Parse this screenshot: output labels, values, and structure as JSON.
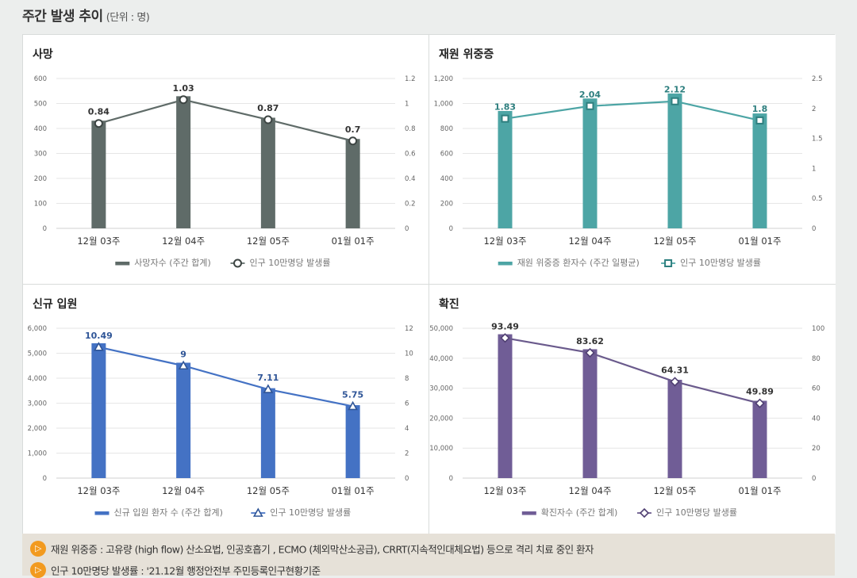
{
  "header": {
    "title": "주간 발생 추이",
    "unit": "(단위 : 명)"
  },
  "chart_data": [
    {
      "type": "bar",
      "title": "사망",
      "categories": [
        "12월 03주",
        "12월 04주",
        "12월 05주",
        "01월 01주"
      ],
      "series": [
        {
          "name": "사망자수 (주간 합계)",
          "kind": "bar",
          "axis": "left",
          "values": [
            431,
            529,
            443,
            358
          ]
        },
        {
          "name": "인구 10만명당 발생률",
          "kind": "line",
          "axis": "right",
          "values": [
            0.84,
            1.03,
            0.87,
            0.7
          ]
        }
      ],
      "data_labels": [
        "0.84",
        "1.03",
        "0.87",
        "0.7"
      ],
      "ylim_left": [
        0,
        600
      ],
      "yticks_left": [
        "0",
        "100",
        "200",
        "300",
        "400",
        "500",
        "600"
      ],
      "ylim_right": [
        0,
        1.2
      ],
      "yticks_right": [
        "0",
        "0.2",
        "0.4",
        "0.6",
        "0.8",
        "1",
        "1.2"
      ],
      "color": "#5f6b68",
      "marker": "circle",
      "grid": true,
      "legend": "bottom"
    },
    {
      "type": "bar",
      "title": "재원 위중증",
      "categories": [
        "12월 03주",
        "12월 04주",
        "12월 05주",
        "01월 01주"
      ],
      "series": [
        {
          "name": "재원 위중증 환자수 (주간 일평균)",
          "kind": "bar",
          "axis": "left",
          "values": [
            940,
            1040,
            1080,
            920
          ]
        },
        {
          "name": "인구 10만명당 발생률",
          "kind": "line",
          "axis": "right",
          "values": [
            1.83,
            2.04,
            2.12,
            1.8
          ]
        }
      ],
      "data_labels": [
        "1.83",
        "2.04",
        "2.12",
        "1.8"
      ],
      "ylim_left": [
        0,
        1200
      ],
      "yticks_left": [
        "0",
        "200",
        "400",
        "600",
        "800",
        "1,000",
        "1,200"
      ],
      "ylim_right": [
        0,
        2.5
      ],
      "yticks_right": [
        "0",
        "0.5",
        "1",
        "1.5",
        "2",
        "2.5"
      ],
      "color": "#4da5a5",
      "label_color": "#2e7f7f",
      "marker": "square",
      "grid": true,
      "legend": "bottom"
    },
    {
      "type": "bar",
      "title": "신규 입원",
      "categories": [
        "12월 03주",
        "12월 04주",
        "12월 05주",
        "01월 01주"
      ],
      "series": [
        {
          "name": "신규 입원 환자 수 (주간 합계)",
          "kind": "bar",
          "axis": "left",
          "values": [
            5400,
            4620,
            3600,
            2920
          ]
        },
        {
          "name": "인구 10만명당 발생률",
          "kind": "line",
          "axis": "right",
          "values": [
            10.49,
            9,
            7.11,
            5.75
          ]
        }
      ],
      "data_labels": [
        "10.49",
        "9",
        "7.11",
        "5.75"
      ],
      "ylim_left": [
        0,
        6000
      ],
      "yticks_left": [
        "0",
        "1,000",
        "2,000",
        "3,000",
        "4,000",
        "5,000",
        "6,000"
      ],
      "ylim_right": [
        0,
        12
      ],
      "yticks_right": [
        "0",
        "2",
        "4",
        "6",
        "8",
        "10",
        "12"
      ],
      "color": "#4472c4",
      "label_color": "#2f5597",
      "marker": "triangle",
      "grid": true,
      "legend": "bottom"
    },
    {
      "type": "bar",
      "title": "확진",
      "categories": [
        "12월 03주",
        "12월 04주",
        "12월 05주",
        "01월 01주"
      ],
      "series": [
        {
          "name": "확진자수 (주간 합계)",
          "kind": "bar",
          "axis": "left",
          "values": [
            48000,
            43000,
            32800,
            25800
          ]
        },
        {
          "name": "인구 10만명당 발생률",
          "kind": "line",
          "axis": "right",
          "values": [
            93.49,
            83.62,
            64.31,
            49.89
          ]
        }
      ],
      "data_labels": [
        "93.49",
        "83.62",
        "64.31",
        "49.89"
      ],
      "ylim_left": [
        0,
        50000
      ],
      "yticks_left": [
        "0",
        "10,000",
        "20,000",
        "30,000",
        "40,000",
        "50,000"
      ],
      "ylim_right": [
        0,
        100
      ],
      "yticks_right": [
        "0",
        "20",
        "40",
        "60",
        "80",
        "100"
      ],
      "color": "#705d96",
      "label_color": "#333333",
      "marker": "diamond",
      "grid": true,
      "legend": "bottom"
    }
  ],
  "footer": {
    "notes": [
      "재원 위중증 : 고유량 (high flow) 산소요법, 인공호흡기 , ECMO (체외막산소공급), CRRT(지속적인대체요법) 등으로 격리 치료 중인 환자",
      "인구 10만명당 발생률 : '21.12월 행정안전부 주민등록인구현황기준"
    ]
  }
}
